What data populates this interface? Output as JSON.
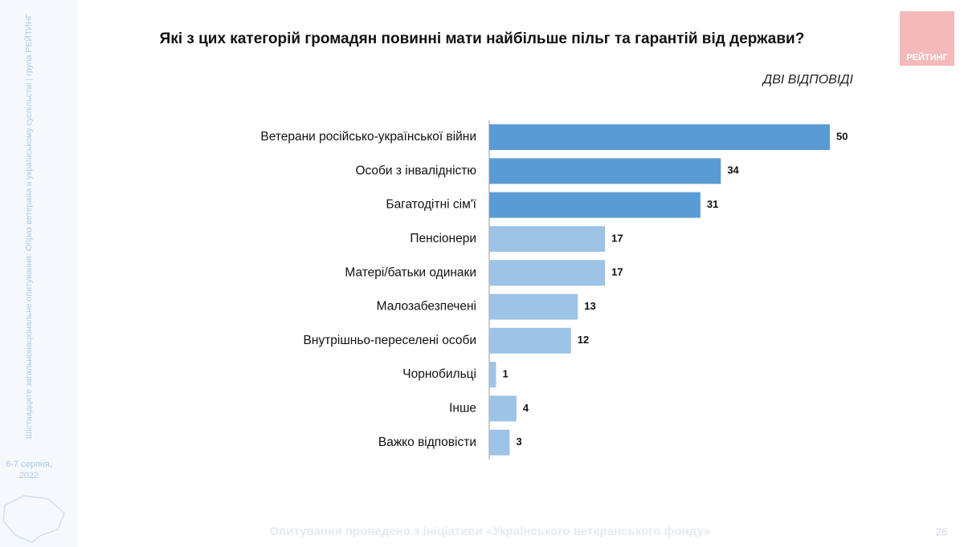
{
  "chart_data": {
    "type": "bar",
    "orientation": "horizontal",
    "title": "Які з цих категорій громадян повинні мати найбільше пільг та гарантій від держави?",
    "subtitle": "ДВІ ВІДПОВІДІ",
    "categories": [
      "Ветерани російсько-української війни",
      "Особи з інвалідністю",
      "Багатодітні сім'ї",
      "Пенсіонери",
      "Матері/батьки одинаки",
      "Малозабезпечені",
      "Внутрішньо-переселені особи",
      "Чорнобильці",
      "Інше",
      "Важко відповісти"
    ],
    "values": [
      50,
      34,
      31,
      17,
      17,
      13,
      12,
      1,
      4,
      3
    ],
    "colors": [
      "#5b9bd5",
      "#5b9bd5",
      "#5b9bd5",
      "#9dc3e6",
      "#9dc3e6",
      "#9dc3e6",
      "#9dc3e6",
      "#9dc3e6",
      "#9dc3e6",
      "#9dc3e6"
    ],
    "xlim": [
      0,
      50
    ]
  },
  "slide": {
    "sidebar": "Шістнадцяте загальнонаціональне опитування: Образ ветерана в українському суспільстві | група РЕЙТИНГ",
    "date_line1": "6-7 серпня,",
    "date_line2": "2022",
    "footer": "Опитування проведено з ініціативи «Українського ветеранського фонду»",
    "page": "26",
    "logo": "РЕЙТИНГ"
  }
}
